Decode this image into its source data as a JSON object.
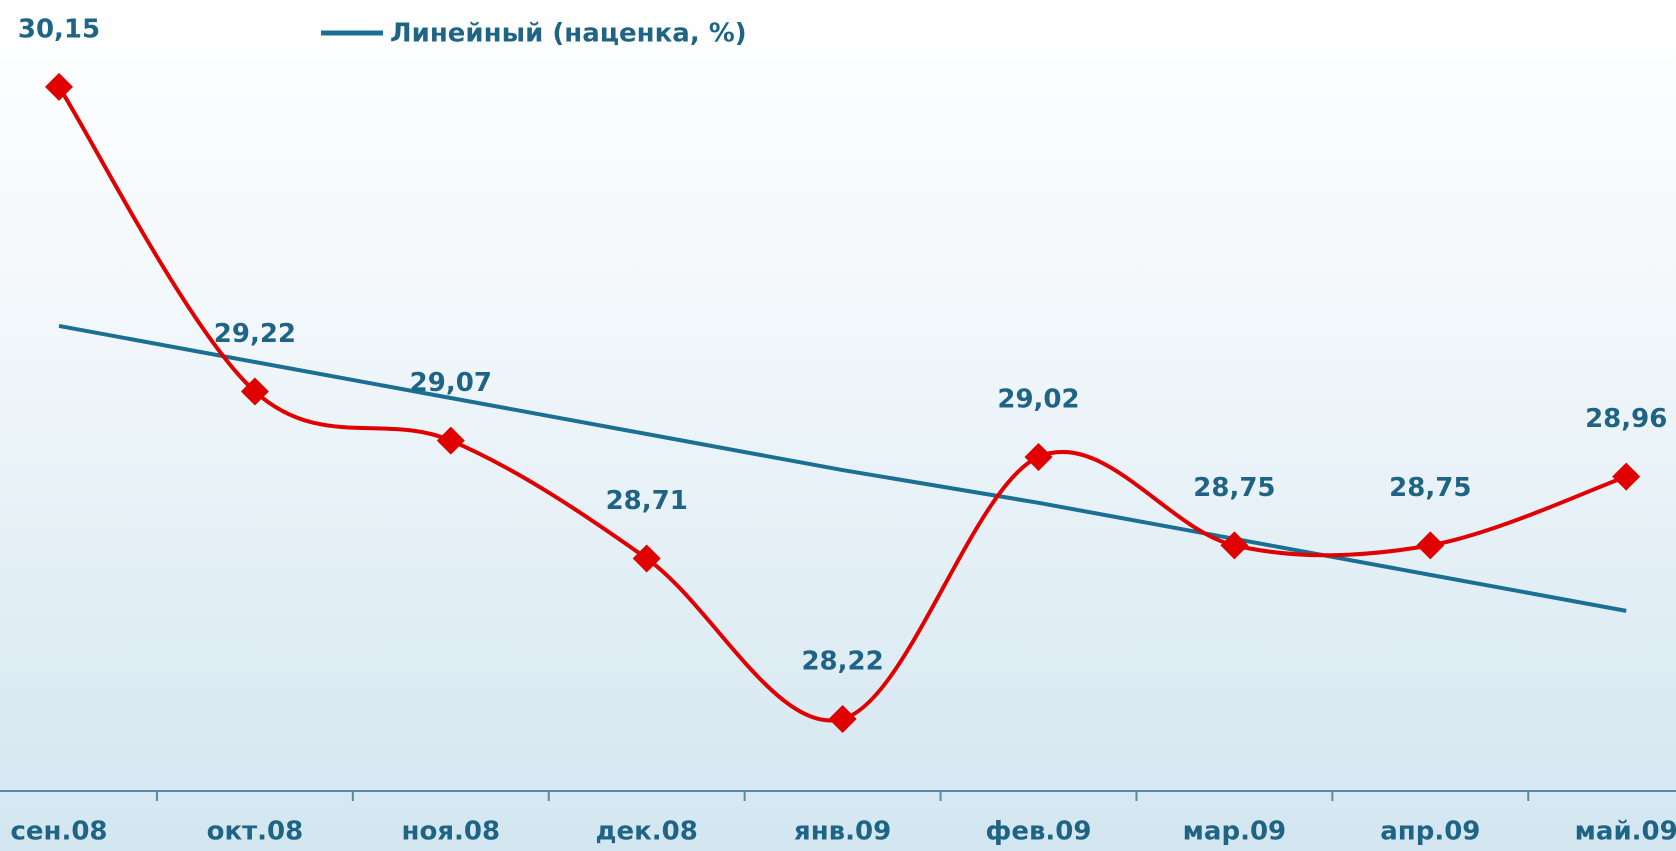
{
  "chart_data": {
    "type": "line",
    "categories": [
      "сен.08",
      "окт.08",
      "ноя.08",
      "дек.08",
      "янв.09",
      "фев.09",
      "мар.09",
      "апр.09",
      "май.09"
    ],
    "values": [
      30.15,
      29.22,
      29.07,
      28.71,
      28.22,
      29.02,
      28.75,
      28.75,
      28.96
    ],
    "value_labels": [
      "30,15",
      "29,22",
      "29,07",
      "28,71",
      "28,22",
      "29,02",
      "28,75",
      "28,75",
      "28,96"
    ],
    "color": "#e00000",
    "smooth": true,
    "trendline": {
      "name": "Линейный (наценка, %)",
      "color": "#1b6f94",
      "values": [
        29.42,
        29.31,
        29.2,
        29.09,
        28.98,
        28.88,
        28.77,
        28.66,
        28.55
      ]
    },
    "ylim": [
      28.0,
      30.4
    ]
  }
}
